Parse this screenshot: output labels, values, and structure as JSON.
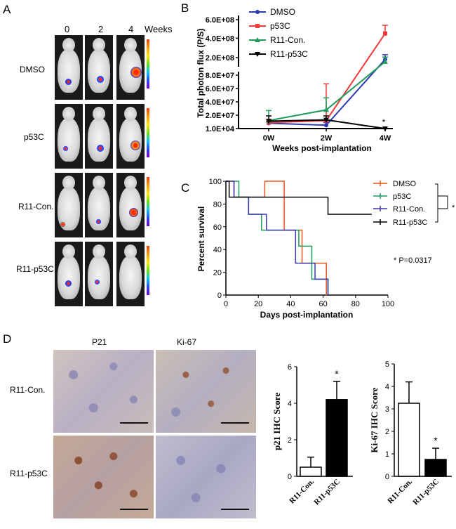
{
  "panel_a": {
    "letter": "A",
    "timepoints": [
      "0",
      "2",
      "4"
    ],
    "weeks_label": "Weeks",
    "groups": [
      "DMSO",
      "p53C",
      "R11-Con.",
      "R11-p53C"
    ]
  },
  "panel_b": {
    "letter": "B"
  },
  "panel_c": {
    "letter": "C",
    "pvalue_text": "* P=0.0317",
    "sig_star": "*"
  },
  "panel_d": {
    "letter": "D",
    "columns": [
      "P21",
      "Ki-67"
    ],
    "rows": [
      "R11-Con.",
      "R11-p53C"
    ],
    "sig_star_p21": "*",
    "sig_star_ki67": "*"
  },
  "colors": {
    "dmso": "#2b3ab0",
    "p53c": "#ee3b3b",
    "r11con": "#1f9a5a",
    "r11p53c": "#000000",
    "survival_dmso": "#e8541c",
    "survival_p53c": "#1f9a5a",
    "survival_r11con": "#3a3ab0"
  },
  "chart_data": [
    {
      "id": "photon_flux",
      "type": "line",
      "xlabel": "Weeks post-implantation",
      "ylabel": "Total photon flux (P/S)",
      "categories": [
        "0W",
        "2W",
        "4W"
      ],
      "yticks_lower": [
        "1.0E+04",
        "2.0E+07",
        "4.0E+07",
        "6.0E+07",
        "8.0E+07"
      ],
      "yticks_upper": [
        "2.0E+08",
        "4.0E+08",
        "6.0E+08"
      ],
      "annotation": "*",
      "series": [
        {
          "name": "DMSO",
          "values": [
            8000000,
            5000000,
            340000000
          ],
          "err": [
            3000000,
            4000000,
            40000000
          ]
        },
        {
          "name": "p53C",
          "values": [
            9000000,
            12000000,
            560000000
          ],
          "err": [
            5000000,
            55000000,
            70000000
          ]
        },
        {
          "name": "R11-Con.",
          "values": [
            12000000,
            28000000,
            320000000
          ],
          "err": [
            15000000,
            18000000,
            40000000
          ]
        },
        {
          "name": "R11-p53C",
          "values": [
            11000000,
            13000000,
            10000
          ],
          "err": [
            8000000,
            6000000,
            0
          ]
        }
      ]
    },
    {
      "id": "survival",
      "type": "line",
      "xlabel": "Days post-implantation",
      "ylabel": "Percent survival",
      "xlim": [
        0,
        100
      ],
      "ylim": [
        0,
        100
      ],
      "xticks": [
        "0",
        "20",
        "40",
        "60",
        "80",
        "100"
      ],
      "yticks": [
        "0",
        "20",
        "40",
        "60",
        "80",
        "100"
      ],
      "series": [
        {
          "name": "DMSO",
          "x": [
            0,
            5,
            24,
            36,
            47,
            62
          ],
          "y": [
            100,
            86,
            100,
            57,
            28,
            0
          ]
        },
        {
          "name": "p53C",
          "x": [
            0,
            8,
            14,
            22,
            42,
            45,
            53,
            63
          ],
          "y": [
            100,
            86,
            71,
            57,
            57,
            43,
            14,
            0
          ]
        },
        {
          "name": "R11-Con.",
          "x": [
            0,
            5,
            14,
            25,
            43,
            50,
            55,
            63
          ],
          "y": [
            100,
            86,
            71,
            57,
            28,
            28,
            14,
            0
          ]
        },
        {
          "name": "R11-p53C",
          "x": [
            0,
            2,
            63,
            90
          ],
          "y": [
            100,
            86,
            71,
            71
          ]
        }
      ]
    },
    {
      "id": "p21_score",
      "type": "bar",
      "ylabel": "p21 IHC Score",
      "categories": [
        "R11-Con.",
        "R11-p53C"
      ],
      "values": [
        0.5,
        4.2
      ],
      "err": [
        0.55,
        1.0
      ],
      "ylim": [
        0,
        6
      ],
      "yticks": [
        "0",
        "2",
        "4",
        "6"
      ]
    },
    {
      "id": "ki67_score",
      "type": "bar",
      "ylabel": "Ki-67 IHC Score",
      "categories": [
        "R11-Con.",
        "R11-p53C"
      ],
      "values": [
        3.25,
        0.75
      ],
      "err": [
        0.95,
        0.5
      ],
      "ylim": [
        0,
        5
      ],
      "yticks": [
        "0",
        "1",
        "2",
        "3",
        "4",
        "5"
      ]
    }
  ]
}
